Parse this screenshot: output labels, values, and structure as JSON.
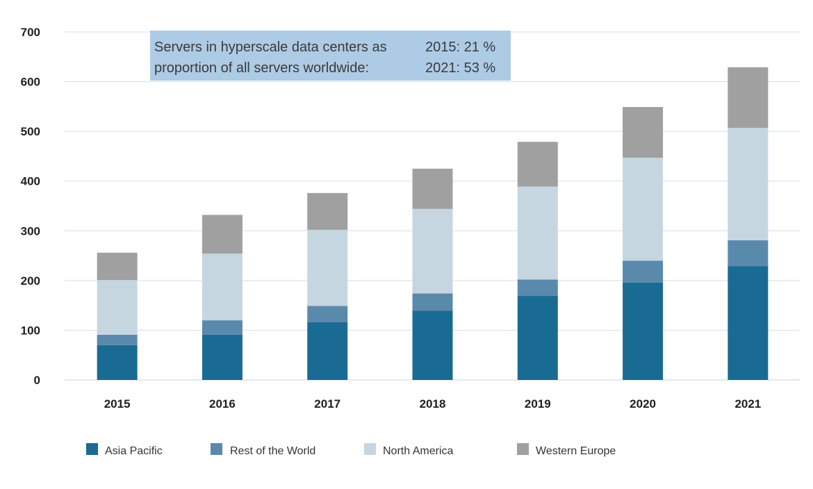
{
  "chart_data": {
    "type": "bar",
    "stacked": true,
    "title": "",
    "xlabel": "",
    "ylabel": "",
    "ylim": [
      0,
      700
    ],
    "yticks": [
      0,
      100,
      200,
      300,
      400,
      500,
      600,
      700
    ],
    "grid": true,
    "legend_position": "bottom",
    "categories": [
      "2015",
      "2016",
      "2017",
      "2018",
      "2019",
      "2020",
      "2021"
    ],
    "series": [
      {
        "name": "Asia Pacific",
        "color": "#1a6b93",
        "values": [
          70,
          91,
          116,
          139,
          169,
          196,
          229
        ]
      },
      {
        "name": "Rest of the World",
        "color": "#5a8aab",
        "values": [
          21,
          29,
          33,
          35,
          33,
          44,
          52
        ]
      },
      {
        "name": "North America",
        "color": "#c6d6e1",
        "values": [
          110,
          134,
          153,
          170,
          187,
          207,
          226
        ]
      },
      {
        "name": "Western Europe",
        "color": "#a0a0a0",
        "values": [
          55,
          78,
          74,
          81,
          90,
          102,
          122
        ]
      }
    ],
    "annotation": {
      "line1_left": "Servers in hyperscale data centers as",
      "line2_left": "proportion of all servers worldwide:",
      "line1_right": "2015: 21 %",
      "line2_right": "2021: 53 %",
      "background": "#aecbe6"
    }
  }
}
